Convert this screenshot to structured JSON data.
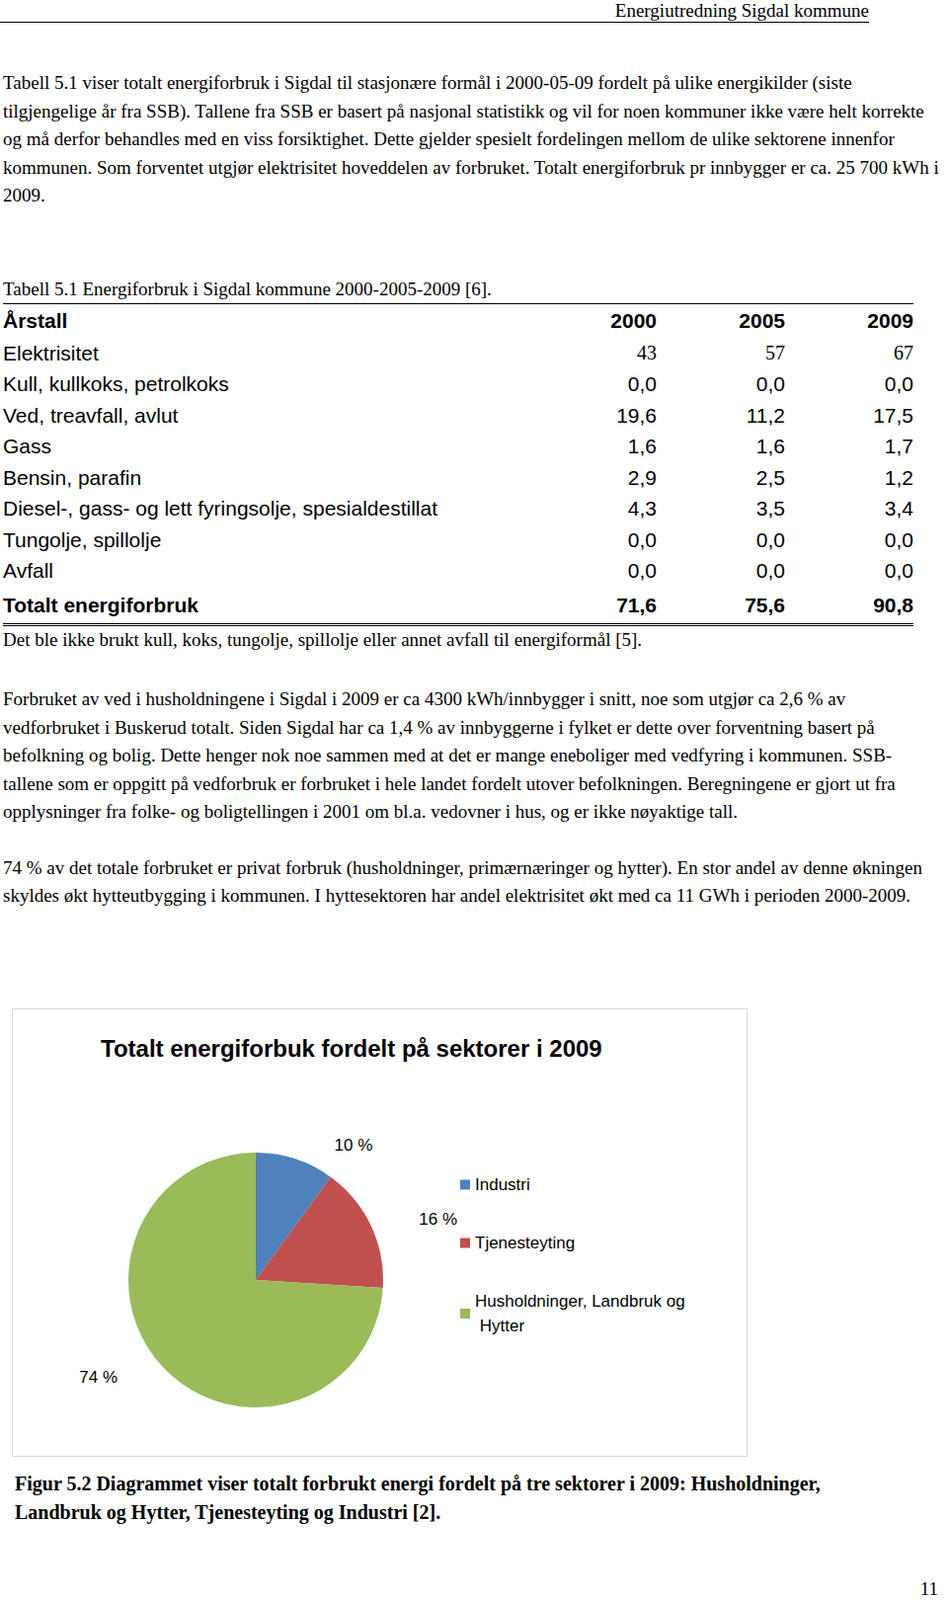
{
  "header": "Energiutredning Sigdal kommune",
  "paragraphs_top": [
    "Tabell 5.1 viser totalt energiforbruk i Sigdal til stasjonære formål i 2000-05-09 fordelt på ulike energikilder (siste tilgjengelige år fra SSB). Tallene fra SSB er basert på nasjonal statistikk og vil for noen kommuner ikke være helt korrekte og må derfor behandles med en viss forsiktighet. Dette gjelder spesielt fordelingen mellom de ulike sektorene innenfor kommunen. Som forventet utgjør elektrisitet hoveddelen av forbruket. Totalt energiforbruk pr innbygger er ca. 25 700 kWh i 2009."
  ],
  "table": {
    "caption": "Tabell 5.1 Energiforbruk i Sigdal kommune 2000-2005-2009 [6].",
    "columns": [
      "Årstall",
      "2000",
      "2005",
      "2009"
    ],
    "rows": [
      [
        "Elektrisitet",
        "43",
        "57",
        "67"
      ],
      [
        "Kull, kullkoks, petrolkoks",
        "0,0",
        "0,0",
        "0,0"
      ],
      [
        "Ved, treavfall, avlut",
        "19,6",
        "11,2",
        "17,5"
      ],
      [
        "Gass",
        "1,6",
        "1,6",
        "1,7"
      ],
      [
        "Bensin, parafin",
        "2,9",
        "2,5",
        "1,2"
      ],
      [
        "Diesel-, gass- og lett fyringsolje, spesialdestillat",
        "4,3",
        "3,5",
        "3,4"
      ],
      [
        "Tungolje, spillolje",
        "0,0",
        "0,0",
        "0,0"
      ],
      [
        "Avfall",
        "0,0",
        "0,0",
        "0,0"
      ]
    ],
    "total": [
      "Totalt energiforbruk",
      "71,6",
      "75,6",
      "90,8"
    ],
    "note": "Det ble ikke brukt kull, koks, tungolje, spillolje eller annet avfall til energiformål [5]."
  },
  "paragraphs_bottom": [
    "Forbruket av ved i husholdningene i Sigdal i 2009 er ca 4300 kWh/innbygger i snitt, noe som utgjør ca 2,6 % av vedforbruket i Buskerud totalt. Siden Sigdal har ca 1,4 % av innbyggerne i fylket er dette over forventning basert på befolkning og bolig. Dette henger nok noe sammen med at det er mange eneboliger med vedfyring i kommunen. SSB-tallene som er oppgitt på vedforbruk er forbruket i hele landet fordelt utover befolkningen. Beregningene er gjort ut fra opplysninger fra folke- og boligtellingen i 2001 om bl.a. vedovner i hus, og er ikke nøyaktige tall.",
    "74 % av det totale forbruket er privat forbruk (husholdninger, primærnæringer og hytter). En stor andel av denne økningen skyldes økt hytteutbygging i kommunen. I hyttesektoren har andel elektrisitet økt med ca 11 GWh i perioden 2000-2009."
  ],
  "chart_data": {
    "type": "pie",
    "title": "Totalt energiforbuk fordelt på sektorer i 2009",
    "categories": [
      "Industri",
      "Tjenesteyting",
      "Husholdninger, Landbruk og Hytter"
    ],
    "values": [
      10,
      16,
      74
    ],
    "value_labels": [
      "10 %",
      "16 %",
      "74 %"
    ],
    "colors": [
      "#4f81bd",
      "#c0504d",
      "#9bbb59"
    ],
    "data_labels": true,
    "legend": "right"
  },
  "figure_caption": "Figur 5.2 Diagrammet viser totalt forbrukt energi  fordelt på tre sektorer i 2009: Husholdninger, Landbruk og Hytter, Tjenesteyting og Industri [2].",
  "page_number": "11"
}
